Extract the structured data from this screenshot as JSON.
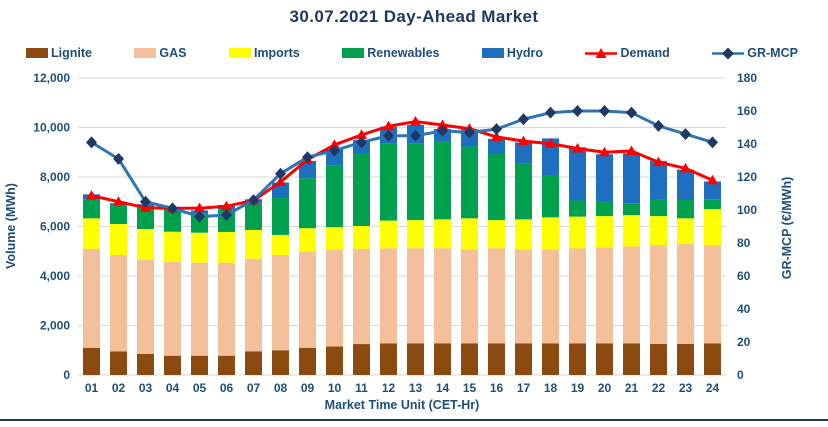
{
  "chart_data": {
    "type": "combo-stacked-bar-line",
    "title": "30.07.2021  Day-Ahead Market",
    "x_label": "Market Time Unit (CET-Hr)",
    "y_left": {
      "label": "Volume (MWh)",
      "min": 0,
      "max": 12000,
      "step": 2000
    },
    "y_right": {
      "label": "GR-MCP (€/MWh)",
      "min": 0,
      "max": 180,
      "step": 20
    },
    "categories": [
      "01",
      "02",
      "03",
      "04",
      "05",
      "06",
      "07",
      "08",
      "09",
      "10",
      "11",
      "12",
      "13",
      "14",
      "15",
      "16",
      "17",
      "18",
      "19",
      "20",
      "21",
      "22",
      "23",
      "24"
    ],
    "stacked_series": [
      {
        "name": "Lignite",
        "color": "#8a4a10",
        "values": [
          1100,
          950,
          850,
          780,
          780,
          780,
          950,
          1000,
          1100,
          1150,
          1250,
          1280,
          1280,
          1280,
          1280,
          1280,
          1280,
          1280,
          1280,
          1280,
          1280,
          1260,
          1260,
          1280
        ]
      },
      {
        "name": "GAS",
        "color": "#f4c09c",
        "values": [
          4000,
          3900,
          3800,
          3800,
          3760,
          3760,
          3750,
          3850,
          3900,
          3930,
          3850,
          3840,
          3840,
          3840,
          3800,
          3840,
          3800,
          3800,
          3840,
          3880,
          3910,
          3990,
          4030,
          3970
        ]
      },
      {
        "name": "Imports",
        "color": "#ffff00",
        "values": [
          1230,
          1250,
          1250,
          1210,
          1210,
          1240,
          1160,
          810,
          930,
          890,
          920,
          1120,
          1140,
          1170,
          1250,
          1140,
          1210,
          1290,
          1280,
          1260,
          1270,
          1170,
          1040,
          1450
        ]
      },
      {
        "name": "Renewables",
        "color": "#00a14e",
        "values": [
          770,
          740,
          860,
          920,
          780,
          920,
          1080,
          1490,
          2020,
          2500,
          2950,
          3120,
          3100,
          3140,
          2900,
          2670,
          2260,
          1710,
          650,
          610,
          480,
          690,
          740,
          400
        ]
      },
      {
        "name": "Hydro",
        "color": "#1f6fc0",
        "values": [
          200,
          100,
          140,
          90,
          120,
          170,
          160,
          630,
          700,
          700,
          530,
          670,
          740,
          510,
          700,
          610,
          850,
          1480,
          2150,
          1890,
          2020,
          1540,
          1230,
          720
        ]
      }
    ],
    "line_series": [
      {
        "name": "Demand",
        "axis": "left",
        "color": "#ff0000",
        "marker": "triangle",
        "marker_color": "#ff0000",
        "values": [
          7250,
          7000,
          6760,
          6730,
          6740,
          6820,
          7050,
          7800,
          8700,
          9300,
          9700,
          10050,
          10240,
          10100,
          9950,
          9620,
          9450,
          9350,
          9150,
          9000,
          9050,
          8600,
          8350,
          7870
        ]
      },
      {
        "name": "GR-MCP",
        "axis": "right",
        "color": "#2e75b6",
        "marker": "diamond",
        "marker_color": "#1f3864",
        "values": [
          141,
          131,
          105,
          101,
          96,
          97,
          106,
          122,
          132,
          136,
          141,
          145,
          145,
          148,
          147,
          149,
          155,
          159,
          160,
          160,
          159,
          151,
          146,
          141
        ]
      }
    ],
    "grid": "horizontal",
    "legend_position": "top",
    "style": {
      "title_color": "#1f3864",
      "axis_text_color": "#1f4e79",
      "gridline_color": "#d9d9d9",
      "bottom_border_color": "#1f3864",
      "background": "#ffffff"
    }
  }
}
